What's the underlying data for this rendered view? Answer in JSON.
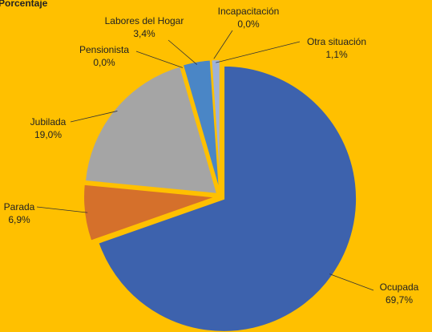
{
  "chart_data": {
    "type": "pie",
    "title": "Porcentaje",
    "categories": [
      "Ocupada",
      "Parada",
      "Jubilada",
      "Pensionista",
      "Labores del Hogar",
      "Incapacitación",
      "Otra situación"
    ],
    "values": [
      69.7,
      6.9,
      19.0,
      0.0,
      3.4,
      0.0,
      1.1
    ],
    "value_labels": [
      "69,7%",
      "6,9%",
      "19,0%",
      "0,0%",
      "3,4%",
      "0,0%",
      "1,1%"
    ],
    "colors": [
      "#3d62ad",
      "#d5702b",
      "#a5a5a5",
      "#f2c12e",
      "#4a86c6",
      "#7f7f7f",
      "#9fb2d8"
    ]
  }
}
